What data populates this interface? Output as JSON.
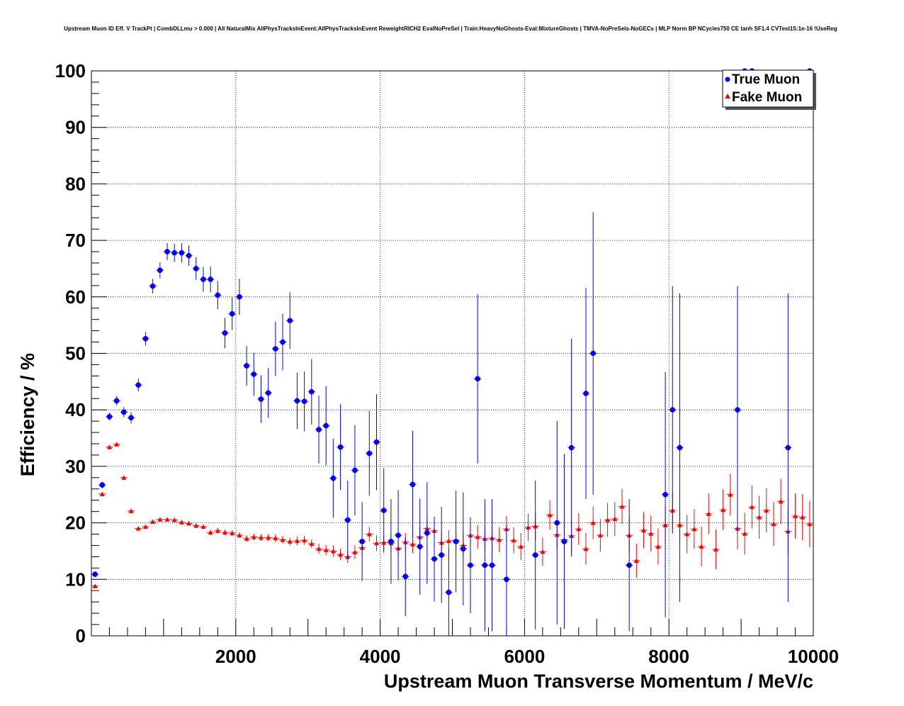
{
  "chart_data": {
    "type": "scatter",
    "title": "Upstream Muon ID Eff. V TrackPt | CombDLLmu > 0.000 | All NaturalMix AllPhysTracksInEvent:AllPhysTracksInEvent ReweightRICH2 EvalNoPreSel | Train:HeavyNoGhosts-Eval:MixtureGhosts | TMVA-NoPreSels-NoGECs | MLP Norm BP NCycles750 CE tanh SF1.4 CVTest15:1e-16 !UseReg",
    "xlabel": "Upstream Muon Transverse Momentum / MeV/c",
    "ylabel": "Efficiency / %",
    "xlim": [
      0,
      10000
    ],
    "ylim": [
      0,
      100
    ],
    "x_tick_labels": [
      "2000",
      "4000",
      "6000",
      "8000",
      "10000"
    ],
    "y_tick_labels": [
      "0",
      "10",
      "20",
      "30",
      "40",
      "50",
      "60",
      "70",
      "80",
      "90",
      "100"
    ],
    "grid": true,
    "legend_position": "top-right",
    "series": [
      {
        "name": "True Muon",
        "color": "#0000ff",
        "marker": "circle",
        "points": [
          {
            "x": 50,
            "y": 10.9,
            "err": 0.5
          },
          {
            "x": 150,
            "y": 26.7,
            "err": 0.6
          },
          {
            "x": 250,
            "y": 38.8,
            "err": 0.7
          },
          {
            "x": 350,
            "y": 41.6,
            "err": 0.8
          },
          {
            "x": 450,
            "y": 39.6,
            "err": 0.9
          },
          {
            "x": 550,
            "y": 38.6,
            "err": 1.0
          },
          {
            "x": 650,
            "y": 44.4,
            "err": 1.1
          },
          {
            "x": 750,
            "y": 52.6,
            "err": 1.2
          },
          {
            "x": 850,
            "y": 61.9,
            "err": 1.3
          },
          {
            "x": 950,
            "y": 64.7,
            "err": 1.4
          },
          {
            "x": 1050,
            "y": 68.0,
            "err": 1.5
          },
          {
            "x": 1150,
            "y": 67.8,
            "err": 1.6
          },
          {
            "x": 1250,
            "y": 67.8,
            "err": 1.7
          },
          {
            "x": 1350,
            "y": 67.3,
            "err": 1.8
          },
          {
            "x": 1450,
            "y": 65.0,
            "err": 2.0
          },
          {
            "x": 1550,
            "y": 63.1,
            "err": 2.2
          },
          {
            "x": 1650,
            "y": 63.1,
            "err": 2.3
          },
          {
            "x": 1750,
            "y": 60.3,
            "err": 2.5
          },
          {
            "x": 1850,
            "y": 53.6,
            "err": 2.7
          },
          {
            "x": 1950,
            "y": 57.0,
            "err": 2.9
          },
          {
            "x": 2050,
            "y": 60.0,
            "err": 3.2
          },
          {
            "x": 2150,
            "y": 47.8,
            "err": 3.5
          },
          {
            "x": 2250,
            "y": 46.3,
            "err": 3.8
          },
          {
            "x": 2350,
            "y": 41.9,
            "err": 4.2
          },
          {
            "x": 2450,
            "y": 43.0,
            "err": 4.4
          },
          {
            "x": 2550,
            "y": 50.8,
            "err": 4.8
          },
          {
            "x": 2650,
            "y": 52.0,
            "err": 5.0
          },
          {
            "x": 2750,
            "y": 55.8,
            "err": 5.0
          },
          {
            "x": 2850,
            "y": 41.6,
            "err": 5.0
          },
          {
            "x": 2950,
            "y": 41.5,
            "err": 5.3
          },
          {
            "x": 3050,
            "y": 43.2,
            "err": 5.8
          },
          {
            "x": 3150,
            "y": 36.5,
            "err": 6.0
          },
          {
            "x": 3250,
            "y": 37.2,
            "err": 7.0
          },
          {
            "x": 3350,
            "y": 27.9,
            "err": 7.0
          },
          {
            "x": 3450,
            "y": 33.4,
            "err": 7.6
          },
          {
            "x": 3550,
            "y": 20.5,
            "err": 7.0
          },
          {
            "x": 3650,
            "y": 29.3,
            "err": 8.0
          },
          {
            "x": 3750,
            "y": 16.7,
            "err": 7.0
          },
          {
            "x": 3850,
            "y": 32.3,
            "err": 7.5
          },
          {
            "x": 3950,
            "y": 34.3,
            "err": 8.5
          },
          {
            "x": 4050,
            "y": 22.2,
            "err": 7.5
          },
          {
            "x": 4150,
            "y": 16.7,
            "err": 7.5
          },
          {
            "x": 4250,
            "y": 17.8,
            "err": 8.0
          },
          {
            "x": 4350,
            "y": 10.5,
            "err": 7.0
          },
          {
            "x": 4450,
            "y": 26.8,
            "err": 9.5
          },
          {
            "x": 4550,
            "y": 15.8,
            "err": 8.5
          },
          {
            "x": 4650,
            "y": 18.2,
            "err": 9.0
          },
          {
            "x": 4750,
            "y": 13.6,
            "err": 7.5
          },
          {
            "x": 4850,
            "y": 14.3,
            "err": 8.5
          },
          {
            "x": 4950,
            "y": 7.7,
            "err": 7.7
          },
          {
            "x": 5050,
            "y": 16.7,
            "err": 9.0
          },
          {
            "x": 5150,
            "y": 15.4,
            "err": 10.0
          },
          {
            "x": 5250,
            "y": 12.5,
            "err": 8.5
          },
          {
            "x": 5350,
            "y": 45.5,
            "err": 15.0
          },
          {
            "x": 5450,
            "y": 12.5,
            "err": 11.7
          },
          {
            "x": 5550,
            "y": 12.5,
            "err": 11.7
          },
          {
            "x": 5750,
            "y": 10.0,
            "err": 9.5
          },
          {
            "x": 6150,
            "y": 14.3,
            "err": 13.2
          },
          {
            "x": 6450,
            "y": 20.0,
            "err": 18.0
          },
          {
            "x": 6550,
            "y": 16.7,
            "err": 15.5
          },
          {
            "x": 6650,
            "y": 33.3,
            "err": 19.3
          },
          {
            "x": 6850,
            "y": 42.9,
            "err": 18.7
          },
          {
            "x": 6950,
            "y": 50.0,
            "err": 25.0
          },
          {
            "x": 7450,
            "y": 12.5,
            "err": 11.7
          },
          {
            "x": 7950,
            "y": 25.0,
            "err": 21.7
          },
          {
            "x": 8050,
            "y": 40.0,
            "err": 21.9
          },
          {
            "x": 8150,
            "y": 33.3,
            "err": 27.3
          },
          {
            "x": 8950,
            "y": 40.0,
            "err": 21.9
          },
          {
            "x": 9050,
            "y": 100.0,
            "err": 0
          },
          {
            "x": 9150,
            "y": 100.0,
            "err": 0
          },
          {
            "x": 9650,
            "y": 33.3,
            "err": 27.3
          },
          {
            "x": 9950,
            "y": 100.0,
            "err": 0
          }
        ]
      },
      {
        "name": "Fake Muon",
        "color": "#ff0000",
        "marker": "triangle",
        "points": [
          {
            "x": 50,
            "y": 8.8,
            "err": 0.3
          },
          {
            "x": 150,
            "y": 25.1,
            "err": 0.3
          },
          {
            "x": 250,
            "y": 33.4,
            "err": 0.3
          },
          {
            "x": 350,
            "y": 33.9,
            "err": 0.3
          },
          {
            "x": 450,
            "y": 28.0,
            "err": 0.3
          },
          {
            "x": 550,
            "y": 22.1,
            "err": 0.3
          },
          {
            "x": 650,
            "y": 19.0,
            "err": 0.3
          },
          {
            "x": 750,
            "y": 19.3,
            "err": 0.3
          },
          {
            "x": 850,
            "y": 20.2,
            "err": 0.3
          },
          {
            "x": 950,
            "y": 20.6,
            "err": 0.3
          },
          {
            "x": 1050,
            "y": 20.6,
            "err": 0.3
          },
          {
            "x": 1150,
            "y": 20.5,
            "err": 0.4
          },
          {
            "x": 1250,
            "y": 20.1,
            "err": 0.4
          },
          {
            "x": 1350,
            "y": 19.9,
            "err": 0.4
          },
          {
            "x": 1450,
            "y": 19.5,
            "err": 0.4
          },
          {
            "x": 1550,
            "y": 19.3,
            "err": 0.4
          },
          {
            "x": 1650,
            "y": 18.3,
            "err": 0.5
          },
          {
            "x": 1750,
            "y": 18.6,
            "err": 0.5
          },
          {
            "x": 1850,
            "y": 18.3,
            "err": 0.5
          },
          {
            "x": 1950,
            "y": 18.2,
            "err": 0.5
          },
          {
            "x": 2050,
            "y": 17.8,
            "err": 0.5
          },
          {
            "x": 2150,
            "y": 17.2,
            "err": 0.6
          },
          {
            "x": 2250,
            "y": 17.5,
            "err": 0.6
          },
          {
            "x": 2350,
            "y": 17.4,
            "err": 0.6
          },
          {
            "x": 2450,
            "y": 17.4,
            "err": 0.6
          },
          {
            "x": 2550,
            "y": 17.3,
            "err": 0.7
          },
          {
            "x": 2650,
            "y": 17.0,
            "err": 0.7
          },
          {
            "x": 2750,
            "y": 16.7,
            "err": 0.7
          },
          {
            "x": 2850,
            "y": 16.8,
            "err": 0.8
          },
          {
            "x": 2950,
            "y": 16.9,
            "err": 0.8
          },
          {
            "x": 3050,
            "y": 16.3,
            "err": 0.8
          },
          {
            "x": 3150,
            "y": 15.4,
            "err": 0.9
          },
          {
            "x": 3250,
            "y": 15.2,
            "err": 0.9
          },
          {
            "x": 3350,
            "y": 15.0,
            "err": 1.0
          },
          {
            "x": 3450,
            "y": 14.4,
            "err": 1.0
          },
          {
            "x": 3550,
            "y": 14.0,
            "err": 1.1
          },
          {
            "x": 3650,
            "y": 14.8,
            "err": 1.2
          },
          {
            "x": 3750,
            "y": 15.6,
            "err": 1.2
          },
          {
            "x": 3850,
            "y": 18.0,
            "err": 1.3
          },
          {
            "x": 3950,
            "y": 16.4,
            "err": 1.4
          },
          {
            "x": 4050,
            "y": 16.5,
            "err": 1.4
          },
          {
            "x": 4150,
            "y": 16.4,
            "err": 1.5
          },
          {
            "x": 4250,
            "y": 15.5,
            "err": 1.5
          },
          {
            "x": 4350,
            "y": 16.6,
            "err": 1.6
          },
          {
            "x": 4450,
            "y": 16.2,
            "err": 1.6
          },
          {
            "x": 4550,
            "y": 17.5,
            "err": 1.7
          },
          {
            "x": 4650,
            "y": 19.0,
            "err": 1.8
          },
          {
            "x": 4750,
            "y": 18.6,
            "err": 1.8
          },
          {
            "x": 4850,
            "y": 16.5,
            "err": 1.8
          },
          {
            "x": 4950,
            "y": 16.8,
            "err": 1.9
          },
          {
            "x": 5050,
            "y": 16.9,
            "err": 1.9
          },
          {
            "x": 5150,
            "y": 16.0,
            "err": 2.0
          },
          {
            "x": 5250,
            "y": 17.8,
            "err": 2.0
          },
          {
            "x": 5350,
            "y": 17.5,
            "err": 2.1
          },
          {
            "x": 5450,
            "y": 17.2,
            "err": 2.1
          },
          {
            "x": 5550,
            "y": 17.3,
            "err": 2.2
          },
          {
            "x": 5650,
            "y": 17.0,
            "err": 2.2
          },
          {
            "x": 5750,
            "y": 18.9,
            "err": 2.3
          },
          {
            "x": 5850,
            "y": 16.9,
            "err": 2.3
          },
          {
            "x": 5950,
            "y": 15.8,
            "err": 2.4
          },
          {
            "x": 6050,
            "y": 19.2,
            "err": 2.4
          },
          {
            "x": 6150,
            "y": 19.4,
            "err": 2.5
          },
          {
            "x": 6250,
            "y": 14.9,
            "err": 2.5
          },
          {
            "x": 6350,
            "y": 21.4,
            "err": 2.6
          },
          {
            "x": 6450,
            "y": 17.9,
            "err": 2.6
          },
          {
            "x": 6550,
            "y": 17.0,
            "err": 2.7
          },
          {
            "x": 6650,
            "y": 17.7,
            "err": 2.7
          },
          {
            "x": 6750,
            "y": 18.9,
            "err": 2.8
          },
          {
            "x": 6850,
            "y": 15.4,
            "err": 2.8
          },
          {
            "x": 6950,
            "y": 20.0,
            "err": 2.9
          },
          {
            "x": 7050,
            "y": 17.8,
            "err": 2.9
          },
          {
            "x": 7150,
            "y": 20.5,
            "err": 3.0
          },
          {
            "x": 7250,
            "y": 20.7,
            "err": 3.0
          },
          {
            "x": 7350,
            "y": 22.9,
            "err": 3.1
          },
          {
            "x": 7450,
            "y": 17.8,
            "err": 3.1
          },
          {
            "x": 7550,
            "y": 13.3,
            "err": 3.0
          },
          {
            "x": 7650,
            "y": 18.7,
            "err": 3.2
          },
          {
            "x": 7750,
            "y": 18.1,
            "err": 3.2
          },
          {
            "x": 7850,
            "y": 15.8,
            "err": 3.2
          },
          {
            "x": 7950,
            "y": 19.6,
            "err": 3.3
          },
          {
            "x": 8050,
            "y": 22.2,
            "err": 3.3
          },
          {
            "x": 8150,
            "y": 19.6,
            "err": 3.4
          },
          {
            "x": 8250,
            "y": 18.0,
            "err": 3.4
          },
          {
            "x": 8350,
            "y": 18.9,
            "err": 3.5
          },
          {
            "x": 8450,
            "y": 15.8,
            "err": 3.5
          },
          {
            "x": 8550,
            "y": 21.6,
            "err": 3.6
          },
          {
            "x": 8650,
            "y": 15.3,
            "err": 3.5
          },
          {
            "x": 8750,
            "y": 22.3,
            "err": 3.6
          },
          {
            "x": 8850,
            "y": 25.0,
            "err": 3.7
          },
          {
            "x": 8950,
            "y": 19.0,
            "err": 3.7
          },
          {
            "x": 9050,
            "y": 18.1,
            "err": 3.7
          },
          {
            "x": 9150,
            "y": 22.8,
            "err": 3.8
          },
          {
            "x": 9250,
            "y": 21.0,
            "err": 3.8
          },
          {
            "x": 9350,
            "y": 22.2,
            "err": 3.9
          },
          {
            "x": 9450,
            "y": 19.8,
            "err": 3.9
          },
          {
            "x": 9550,
            "y": 23.8,
            "err": 4.0
          },
          {
            "x": 9650,
            "y": 18.5,
            "err": 4.0
          },
          {
            "x": 9750,
            "y": 21.2,
            "err": 4.0
          },
          {
            "x": 9850,
            "y": 21.0,
            "err": 4.1
          },
          {
            "x": 9950,
            "y": 19.8,
            "err": 4.1
          }
        ]
      }
    ]
  }
}
